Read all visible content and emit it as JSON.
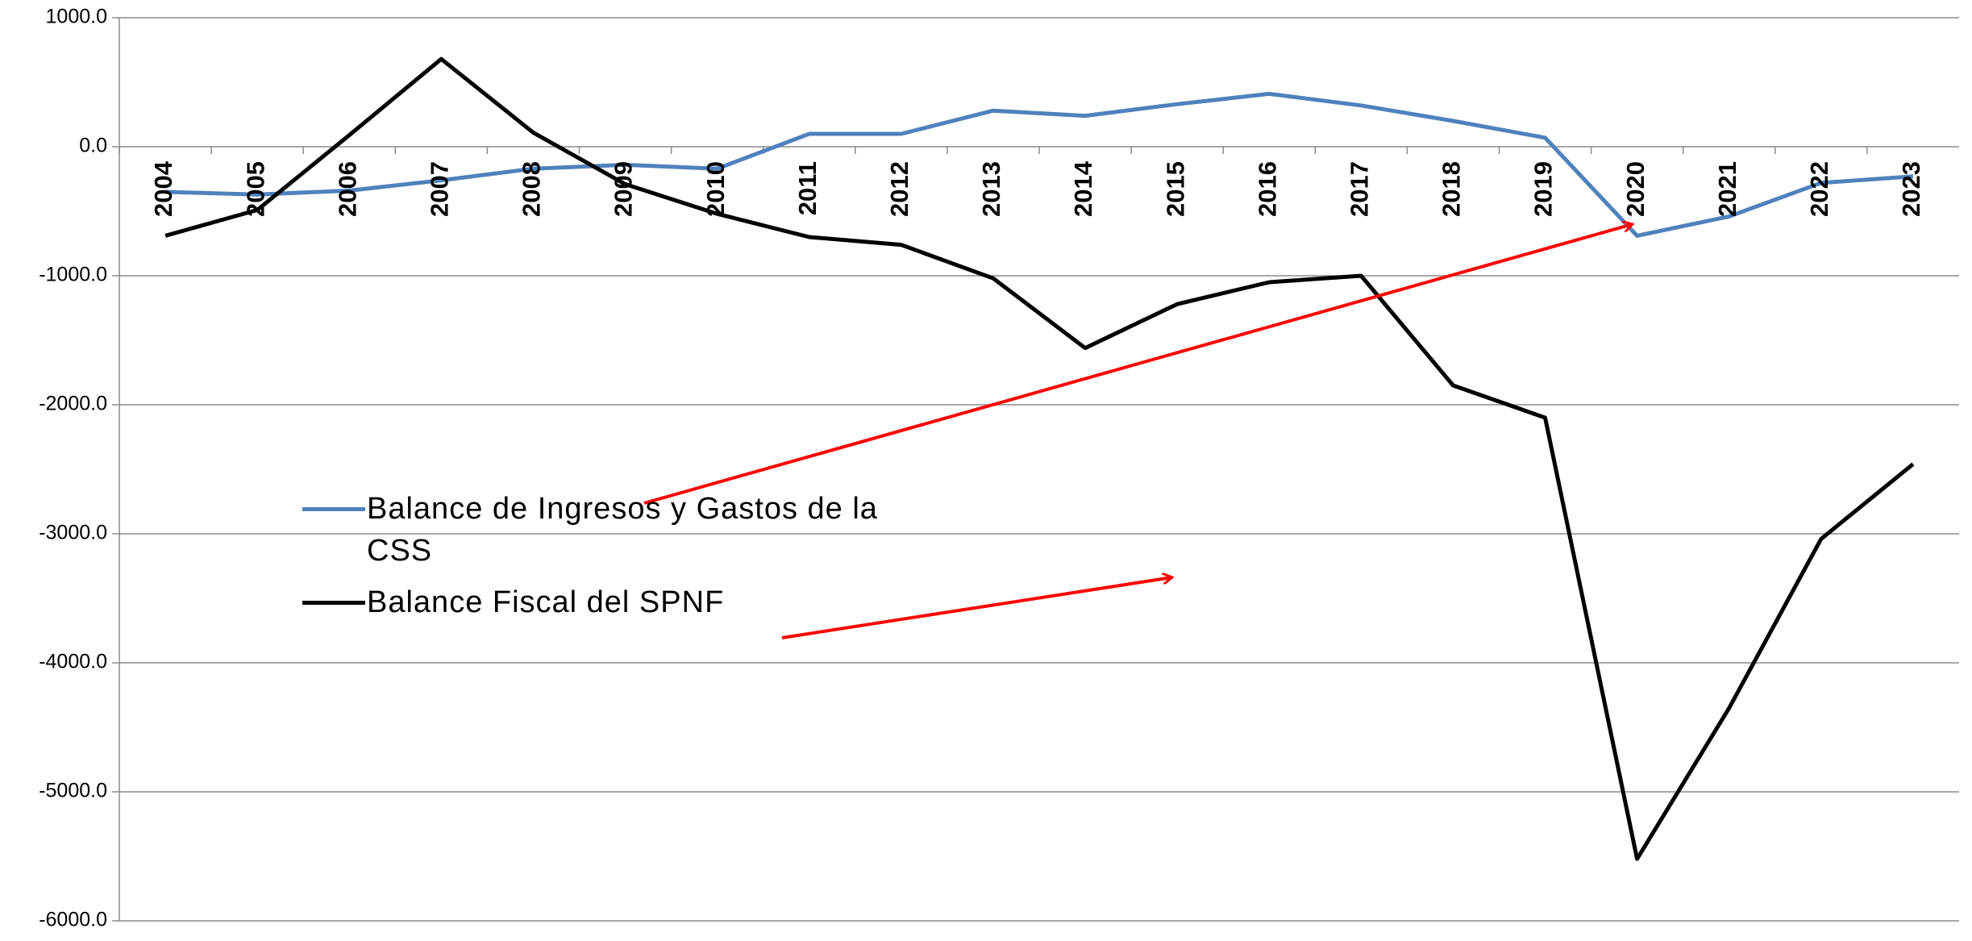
{
  "chart_data": {
    "type": "line",
    "categories": [
      "2004",
      "2005",
      "2006",
      "2007",
      "2008",
      "2009",
      "2010",
      "2011",
      "2012",
      "2013",
      "2014",
      "2015",
      "2016",
      "2017",
      "2018",
      "2019",
      "2020",
      "2021",
      "2022",
      "2023"
    ],
    "series": [
      {
        "name": "Balance de Ingresos y Gastos de la CSS",
        "color": "#4f81bd",
        "values": [
          -350,
          -370,
          -340,
          -260,
          -170,
          -140,
          -170,
          100,
          100,
          280,
          240,
          330,
          410,
          320,
          200,
          70,
          -690,
          -540,
          -280,
          -230
        ]
      },
      {
        "name": "Balance Fiscal del SPNF",
        "color": "#000000",
        "values": [
          -690,
          -490,
          90,
          680,
          110,
          -290,
          -520,
          -700,
          -760,
          -1020,
          -1560,
          -1220,
          -1050,
          -1000,
          -1850,
          -2100,
          -5520,
          -4350,
          -3040,
          -2460
        ]
      }
    ],
    "ylim": [
      -6000,
      1000
    ],
    "yticks": [
      {
        "value": 1000,
        "label": "1000.0"
      },
      {
        "value": 0,
        "label": "0.0"
      },
      {
        "value": -1000,
        "label": "-1000.0"
      },
      {
        "value": -2000,
        "label": "-2000.0"
      },
      {
        "value": -3000,
        "label": "-3000.0"
      },
      {
        "value": -4000,
        "label": "-4000.0"
      },
      {
        "value": -5000,
        "label": "-5000.0"
      },
      {
        "value": -6000,
        "label": "-6000.0"
      }
    ],
    "grid": true
  }
}
